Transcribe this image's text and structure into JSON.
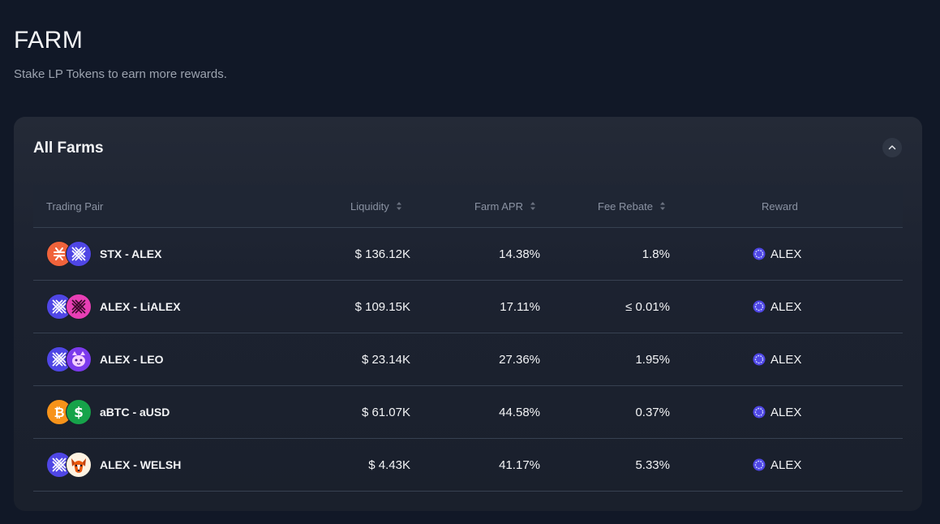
{
  "header": {
    "title": "FARM",
    "subtitle": "Stake LP Tokens to earn more rewards."
  },
  "panel": {
    "title": "All Farms"
  },
  "table": {
    "columns": {
      "pair": "Trading Pair",
      "liquidity": "Liquidity",
      "apr": "Farm APR",
      "fee": "Fee Rebate",
      "reward": "Reward"
    },
    "rows": [
      {
        "pair": "STX - ALEX",
        "token_a": "stx-icon",
        "token_b": "alex-icon",
        "liquidity": "$ 136.12K",
        "apr": "14.38%",
        "fee": "1.8%",
        "reward": "ALEX"
      },
      {
        "pair": "ALEX - LiALEX",
        "token_a": "alex-icon",
        "token_b": "lialex-icon",
        "liquidity": "$ 109.15K",
        "apr": "17.11%",
        "fee": "≤ 0.01%",
        "reward": "ALEX"
      },
      {
        "pair": "ALEX - LEO",
        "token_a": "alex-icon",
        "token_b": "leo-cat-icon",
        "liquidity": "$ 23.14K",
        "apr": "27.36%",
        "fee": "1.95%",
        "reward": "ALEX"
      },
      {
        "pair": "aBTC - aUSD",
        "token_a": "bitcoin-icon",
        "token_b": "dollar-icon",
        "liquidity": "$ 61.07K",
        "apr": "44.58%",
        "fee": "0.37%",
        "reward": "ALEX"
      },
      {
        "pair": "ALEX - WELSH",
        "token_a": "alex-icon",
        "token_b": "welsh-dog-icon",
        "liquidity": "$ 4.43K",
        "apr": "41.17%",
        "fee": "5.33%",
        "reward": "ALEX"
      }
    ]
  },
  "colors": {
    "background": "#111827",
    "panel": "#1c2230",
    "alex_blue": "#4f46e5",
    "stx_orange": "#f0633b",
    "lialex_pink": "#e83fb5",
    "btc_orange": "#f7931a",
    "usd_green": "#16a34a"
  }
}
